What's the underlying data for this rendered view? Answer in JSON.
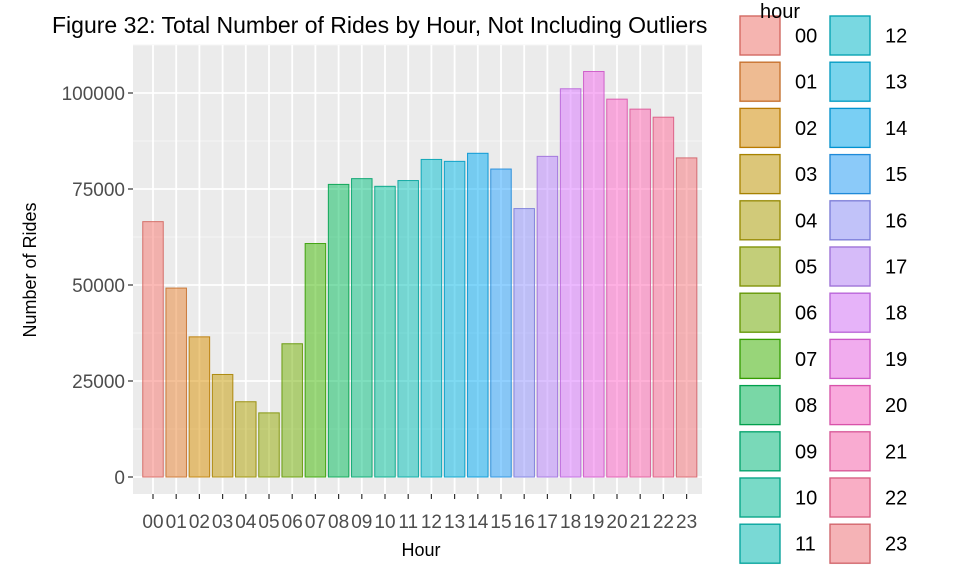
{
  "chart_data": {
    "type": "bar",
    "title": "Figure 32: Total Number of Rides by Hour, Not Including Outliers",
    "xlabel": "Hour",
    "ylabel": "Number of Rides",
    "legend_title": "hour",
    "legend_placement": "right",
    "grid": true,
    "ylim": [
      0,
      110000
    ],
    "y_ticks": [
      0,
      25000,
      50000,
      75000,
      100000
    ],
    "y_tick_labels": [
      "0",
      "25000",
      "50000",
      "75000",
      "100000"
    ],
    "categories": [
      "00",
      "01",
      "02",
      "03",
      "04",
      "05",
      "06",
      "07",
      "08",
      "09",
      "10",
      "11",
      "12",
      "13",
      "14",
      "15",
      "16",
      "17",
      "18",
      "19",
      "20",
      "21",
      "22",
      "23"
    ],
    "values": [
      66500,
      49200,
      36500,
      26700,
      19600,
      16700,
      34700,
      60800,
      76200,
      77700,
      75700,
      77200,
      82700,
      82200,
      84300,
      80200,
      69900,
      83500,
      101100,
      105600,
      98400,
      95800,
      93700,
      83100
    ],
    "colors": [
      "#F8766D",
      "#EA8331",
      "#DA8F00",
      "#C59900",
      "#AFA100",
      "#94AA00",
      "#72B000",
      "#3DB700",
      "#00BC59",
      "#00BF7D",
      "#00C19C",
      "#00C0B7",
      "#00BDD0",
      "#00B6E5",
      "#00ACF5",
      "#24A2FF",
      "#8F91FF",
      "#B983FF",
      "#DA74FF",
      "#F066EA",
      "#FF61C8",
      "#FF64B0",
      "#FF6A98",
      "#F7737A"
    ]
  }
}
